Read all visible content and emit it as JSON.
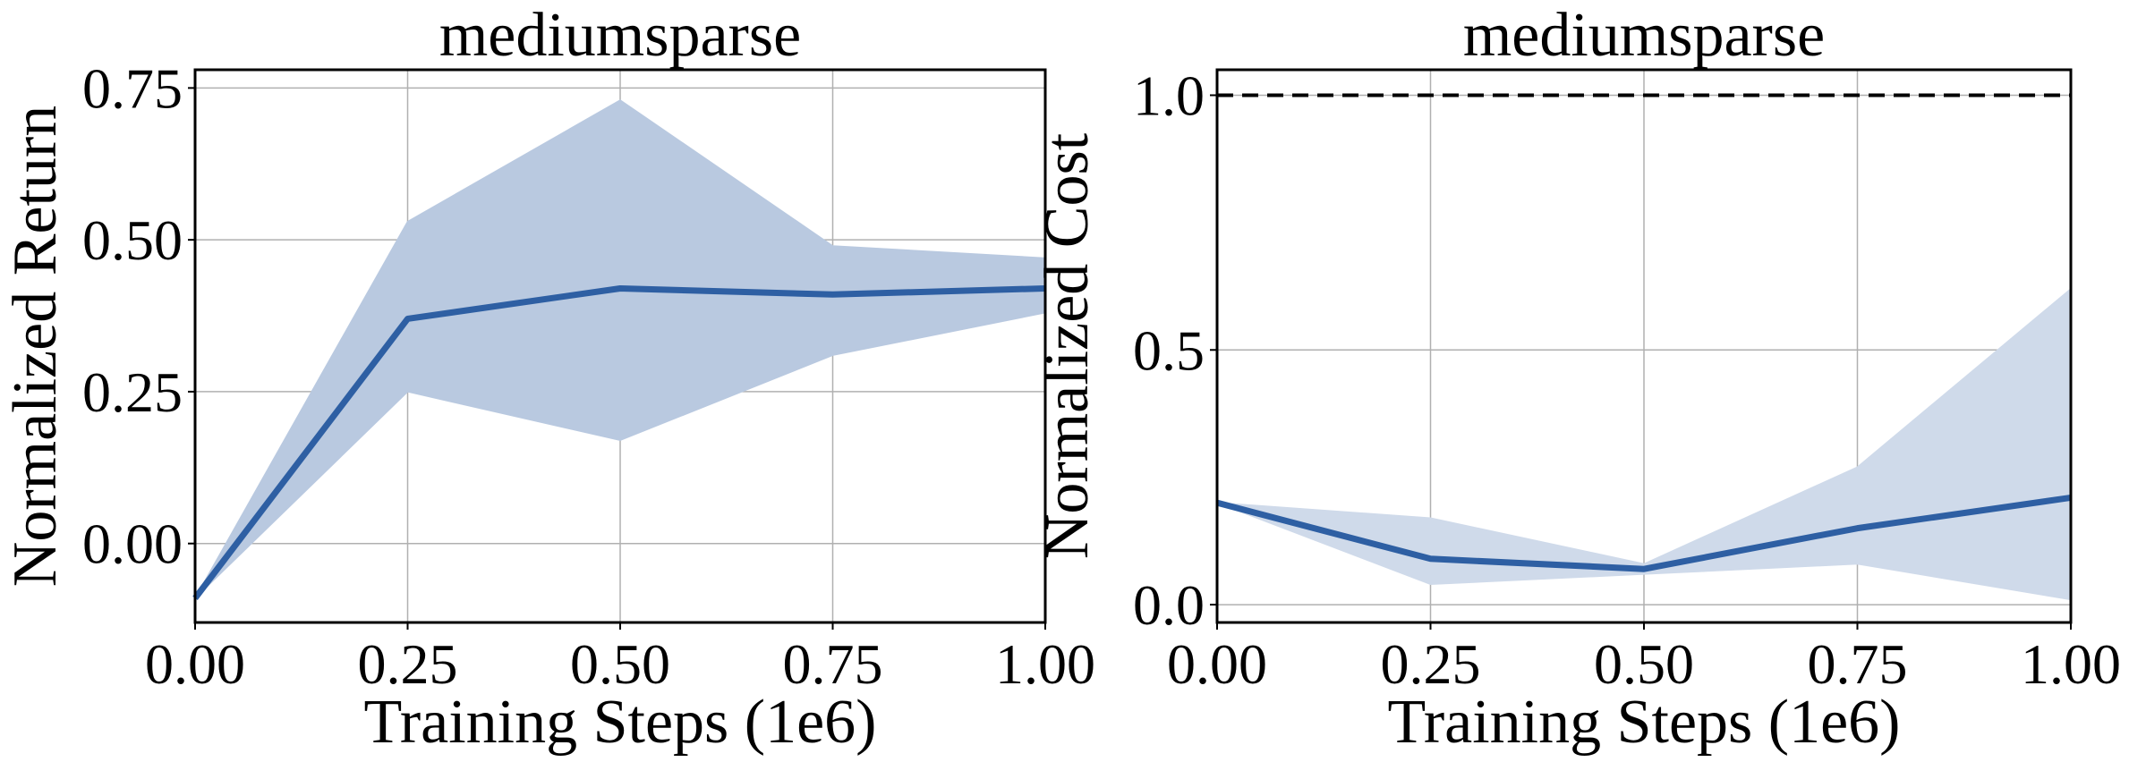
{
  "colors": {
    "line": "#2e5fa3",
    "band_left": "#b9c9e0",
    "band_right": "#cfdaea",
    "reference": "#000000"
  },
  "chart_data": [
    {
      "type": "line",
      "title": "mediumsparse",
      "xlabel": "Training Steps (1e6)",
      "ylabel": "Normalized Return",
      "xlim": [
        0,
        1
      ],
      "ylim": [
        -0.13,
        0.78
      ],
      "xticks": [
        0,
        0.25,
        0.5,
        0.75,
        1.0
      ],
      "xtick_labels": [
        "0.00",
        "0.25",
        "0.50",
        "0.75",
        "1.00"
      ],
      "yticks": [
        0,
        0.25,
        0.5,
        0.75
      ],
      "ytick_labels": [
        "0.00",
        "0.25",
        "0.50",
        "0.75"
      ],
      "grid": true,
      "series": [
        {
          "name": "mean",
          "x": [
            0,
            0.25,
            0.5,
            0.75,
            1.0
          ],
          "y": [
            -0.09,
            0.37,
            0.42,
            0.41,
            0.42
          ],
          "upper": [
            -0.09,
            0.53,
            0.73,
            0.49,
            0.47
          ],
          "lower": [
            -0.09,
            0.25,
            0.17,
            0.31,
            0.38
          ]
        }
      ]
    },
    {
      "type": "line",
      "title": "mediumsparse",
      "xlabel": "Training Steps (1e6)",
      "ylabel": "Normalized Cost",
      "xlim": [
        0,
        1
      ],
      "ylim": [
        -0.035,
        1.05
      ],
      "xticks": [
        0,
        0.25,
        0.5,
        0.75,
        1.0
      ],
      "xtick_labels": [
        "0.00",
        "0.25",
        "0.50",
        "0.75",
        "1.00"
      ],
      "yticks": [
        0,
        0.5,
        1.0
      ],
      "ytick_labels": [
        "0.0",
        "0.5",
        "1.0"
      ],
      "grid": true,
      "reference_line": {
        "y": 1.0,
        "style": "dashed"
      },
      "series": [
        {
          "name": "mean",
          "x": [
            0,
            0.25,
            0.5,
            0.75,
            1.0
          ],
          "y": [
            0.2,
            0.09,
            0.07,
            0.15,
            0.21
          ],
          "upper": [
            0.2,
            0.17,
            0.08,
            0.27,
            0.62
          ],
          "lower": [
            0.2,
            0.04,
            0.06,
            0.08,
            0.01
          ]
        }
      ]
    }
  ]
}
